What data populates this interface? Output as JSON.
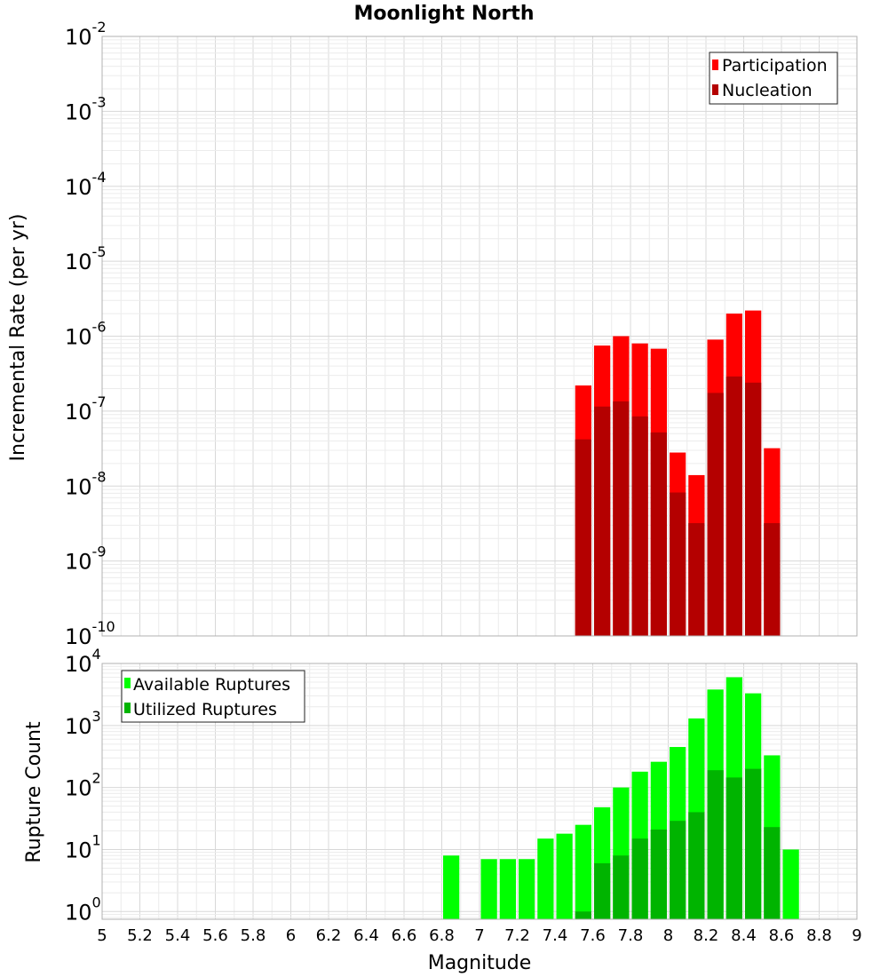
{
  "chart_data": [
    {
      "type": "bar",
      "title": "Moonlight North",
      "xlabel": "",
      "ylabel": "Incremental Rate (per yr)",
      "yscale": "log",
      "ylim": [
        1e-10,
        0.01
      ],
      "xlim": [
        5,
        9
      ],
      "grid": true,
      "legend_position": "top-right",
      "bin_width": 0.1,
      "x": [
        7.55,
        7.65,
        7.75,
        7.85,
        7.95,
        8.05,
        8.15,
        8.25,
        8.35,
        8.45,
        8.55
      ],
      "series": [
        {
          "name": "Participation",
          "color": "#ff0000",
          "values": [
            2.2e-07,
            7.5e-07,
            1e-06,
            8e-07,
            6.8e-07,
            2.8e-08,
            1.4e-08,
            9e-07,
            2e-06,
            2.2e-06,
            3.2e-08
          ]
        },
        {
          "name": "Nucleation",
          "color": "#b40000",
          "values": [
            4.2e-08,
            1.15e-07,
            1.35e-07,
            8.5e-08,
            5.2e-08,
            8.2e-09,
            3.2e-09,
            1.75e-07,
            2.9e-07,
            2.4e-07,
            3.2e-09
          ]
        }
      ],
      "ytick_labels": [
        {
          "base": "10",
          "exp": "-10",
          "value": 1e-10
        },
        {
          "base": "10",
          "exp": "-9",
          "value": 1e-09
        },
        {
          "base": "10",
          "exp": "-8",
          "value": 1e-08
        },
        {
          "base": "10",
          "exp": "-7",
          "value": 1e-07
        },
        {
          "base": "10",
          "exp": "-6",
          "value": 1e-06
        },
        {
          "base": "10",
          "exp": "-5",
          "value": 1e-05
        },
        {
          "base": "10",
          "exp": "-4",
          "value": 0.0001
        },
        {
          "base": "10",
          "exp": "-3",
          "value": 0.001
        },
        {
          "base": "10",
          "exp": "-2",
          "value": 0.01
        }
      ]
    },
    {
      "type": "bar",
      "title": "",
      "xlabel": "Magnitude",
      "ylabel": "Rupture Count",
      "yscale": "log",
      "ylim": [
        0.75,
        10000
      ],
      "xlim": [
        5,
        9
      ],
      "grid": true,
      "legend_position": "top-left",
      "bin_width": 0.1,
      "x": [
        6.85,
        7.05,
        7.15,
        7.25,
        7.35,
        7.45,
        7.55,
        7.65,
        7.75,
        7.85,
        7.95,
        8.05,
        8.15,
        8.25,
        8.35,
        8.45,
        8.55,
        8.65
      ],
      "series": [
        {
          "name": "Available Ruptures",
          "color": "#00ff00",
          "values": [
            8,
            7,
            7,
            7,
            15,
            18,
            25,
            48,
            100,
            180,
            260,
            450,
            1300,
            3800,
            6000,
            3300,
            330,
            10
          ]
        },
        {
          "name": "Utilized Ruptures",
          "color": "#00b400",
          "values": [
            0,
            0,
            0,
            0,
            0,
            0,
            1,
            6,
            8,
            15,
            21,
            29,
            40,
            190,
            145,
            200,
            23,
            0
          ]
        }
      ],
      "ytick_labels": [
        {
          "base": "10",
          "exp": "0",
          "value": 1
        },
        {
          "base": "10",
          "exp": "1",
          "value": 10
        },
        {
          "base": "10",
          "exp": "2",
          "value": 100
        },
        {
          "base": "10",
          "exp": "3",
          "value": 1000
        },
        {
          "base": "10",
          "exp": "4",
          "value": 10000
        }
      ],
      "xtick_labels": [
        "5",
        "5.2",
        "5.4",
        "5.6",
        "5.8",
        "6",
        "6.2",
        "6.4",
        "6.6",
        "6.8",
        "7",
        "7.2",
        "7.4",
        "7.6",
        "7.8",
        "8",
        "8.2",
        "8.4",
        "8.6",
        "8.8",
        "9"
      ]
    }
  ]
}
